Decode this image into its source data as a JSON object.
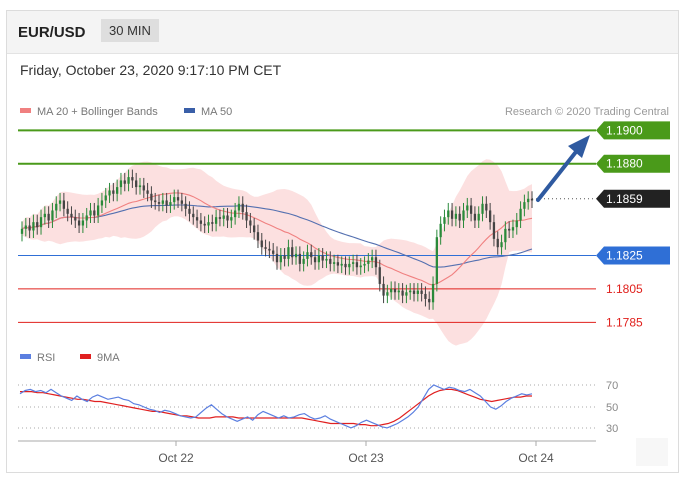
{
  "header": {
    "pair": "EUR/USD",
    "timeframe": "30 MIN"
  },
  "timestamp": "Friday, October 23, 2020 9:17:10 PM CET",
  "legend": {
    "ma20_label": "MA 20 + Bollinger Bands",
    "ma50_label": "MA 50",
    "credit": "Research © 2020 Trading Central",
    "ma20_color": "#f08080",
    "ma50_color": "#3a5fa8"
  },
  "levels": [
    {
      "value": "1.1900",
      "type": "resistance",
      "color": "#4a9a1a"
    },
    {
      "value": "1.1880",
      "type": "resistance",
      "color": "#4a9a1a"
    },
    {
      "value": "1.1859",
      "type": "last",
      "color": "#222222"
    },
    {
      "value": "1.1825",
      "type": "pivot",
      "color": "#2f6fd6"
    },
    {
      "value": "1.1805",
      "type": "support",
      "color": "#e0201c"
    },
    {
      "value": "1.1785",
      "type": "support",
      "color": "#e0201c"
    }
  ],
  "rsi_legend": {
    "rsi_label": "RSI",
    "ma_label": "9MA",
    "rsi_color": "#5b7fe0",
    "ma_color": "#e02020"
  },
  "rsi_axis": [
    "70",
    "50",
    "30"
  ],
  "x_axis": [
    "Oct 22",
    "Oct 23",
    "Oct 24"
  ],
  "chart_data": {
    "type": "candlestick",
    "ylim": [
      1.1778,
      1.1905
    ],
    "closes": [
      1.1841,
      1.1843,
      1.184,
      1.1845,
      1.1842,
      1.1848,
      1.185,
      1.1846,
      1.1852,
      1.1856,
      1.1858,
      1.1853,
      1.185,
      1.1848,
      1.1846,
      1.1843,
      1.1846,
      1.1849,
      1.1852,
      1.1849,
      1.1855,
      1.1858,
      1.1861,
      1.1864,
      1.1862,
      1.1866,
      1.187,
      1.1868,
      1.1872,
      1.187,
      1.1866,
      1.1867,
      1.1864,
      1.1862,
      1.1858,
      1.1857,
      1.1856,
      1.1858,
      1.1855,
      1.1857,
      1.186,
      1.1858,
      1.1856,
      1.1853,
      1.185,
      1.1848,
      1.1846,
      1.1844,
      1.1843,
      1.1845,
      1.1844,
      1.1848,
      1.1847,
      1.1849,
      1.1846,
      1.1848,
      1.1852,
      1.1856,
      1.1851,
      1.1846,
      1.1843,
      1.1839,
      1.1834,
      1.183,
      1.1829,
      1.1828,
      1.1826,
      1.1821,
      1.1825,
      1.1823,
      1.183,
      1.1824,
      1.1826,
      1.182,
      1.1823,
      1.1827,
      1.1824,
      1.1821,
      1.1825,
      1.1822,
      1.1823,
      1.182,
      1.1821,
      1.1819,
      1.182,
      1.1818,
      1.182,
      1.1821,
      1.1818,
      1.1819,
      1.182,
      1.1822,
      1.1824,
      1.1818,
      1.1808,
      1.1801,
      1.1803,
      1.1805,
      1.1803,
      1.1804,
      1.1801,
      1.1803,
      1.1804,
      1.1802,
      1.1804,
      1.1802,
      1.1799,
      1.1797,
      1.1808,
      1.1836,
      1.1844,
      1.1848,
      1.1852,
      1.1847,
      1.185,
      1.1846,
      1.1852,
      1.1855,
      1.185,
      1.1846,
      1.185,
      1.1856,
      1.1852,
      1.1845,
      1.1835,
      1.183,
      1.1833,
      1.1841,
      1.184,
      1.1842,
      1.1846,
      1.1853,
      1.1857,
      1.1859,
      1.1858
    ],
    "rsi": [
      62,
      65,
      66,
      64,
      65,
      63,
      66,
      63,
      60,
      58,
      56,
      60,
      57,
      55,
      59,
      61,
      59,
      57,
      58,
      59,
      57,
      56,
      53,
      52,
      50,
      48,
      47,
      45,
      47,
      46,
      44,
      42,
      41,
      40,
      41,
      45,
      49,
      52,
      48,
      44,
      41,
      39,
      37,
      39,
      41,
      38,
      43,
      46,
      44,
      42,
      40,
      42,
      40,
      41,
      43,
      44,
      41,
      39,
      40,
      42,
      39,
      37,
      35,
      33,
      31,
      33,
      36,
      38,
      36,
      34,
      32,
      31,
      33,
      35,
      38,
      41,
      45,
      50,
      58,
      66,
      70,
      68,
      66,
      68,
      67,
      65,
      64,
      66,
      63,
      60,
      55,
      50,
      48,
      51,
      55,
      58,
      60,
      62,
      61,
      62
    ],
    "rsi_ma": [
      64,
      64,
      64,
      63,
      63,
      62,
      61,
      60,
      59,
      58,
      57,
      57,
      56,
      55,
      55,
      54,
      53,
      52,
      51,
      50,
      49,
      48,
      47,
      46,
      46,
      45,
      44,
      43,
      42,
      42,
      41,
      40,
      40,
      40,
      41,
      41,
      41,
      41,
      40,
      40,
      40,
      40,
      40,
      40,
      40,
      40,
      40,
      40,
      40,
      40,
      39,
      38,
      37,
      36,
      35,
      35,
      35,
      35,
      35,
      34,
      34,
      33,
      33,
      34,
      35,
      37,
      40,
      44,
      48,
      52,
      56,
      60,
      63,
      65,
      66,
      66,
      65,
      63,
      61,
      59,
      57,
      56,
      55,
      56,
      57,
      58,
      59,
      59,
      60,
      60
    ]
  }
}
